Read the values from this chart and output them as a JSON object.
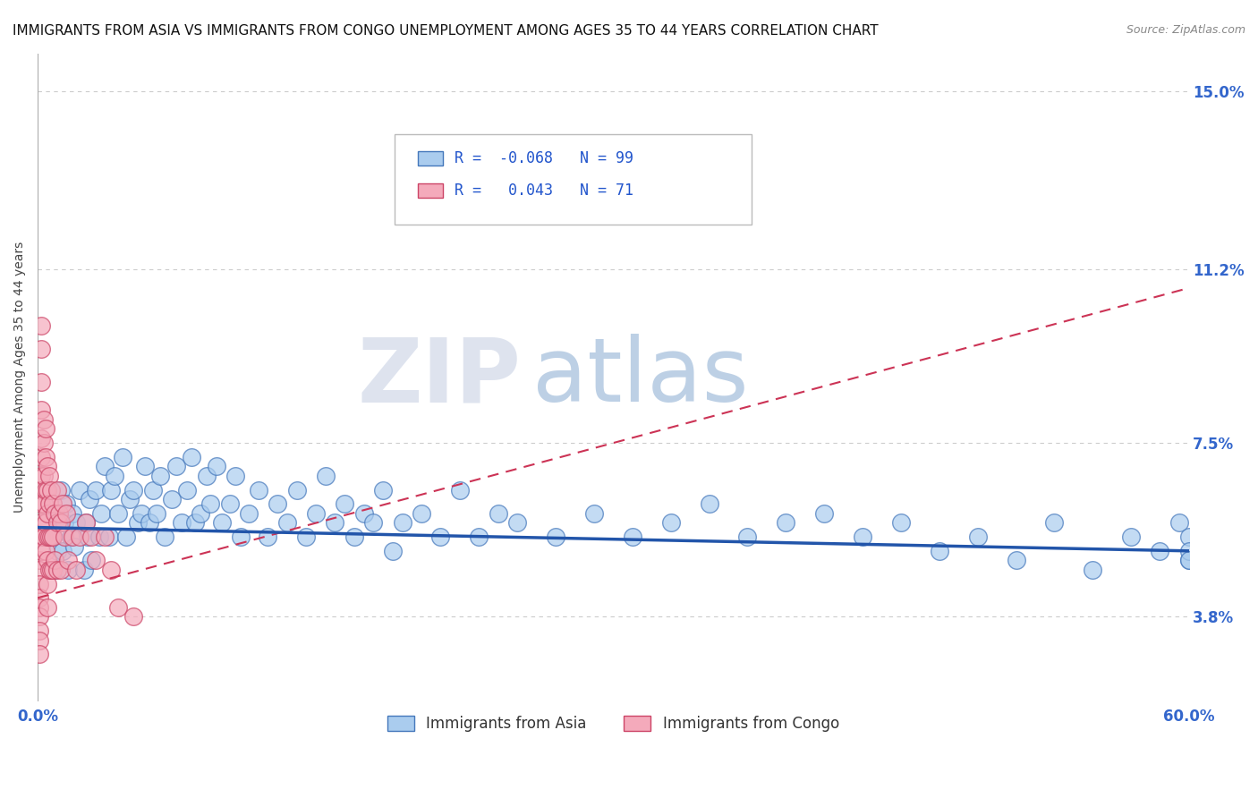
{
  "title": "IMMIGRANTS FROM ASIA VS IMMIGRANTS FROM CONGO UNEMPLOYMENT AMONG AGES 35 TO 44 YEARS CORRELATION CHART",
  "source": "Source: ZipAtlas.com",
  "ylabel": "Unemployment Among Ages 35 to 44 years",
  "xlim": [
    0.0,
    0.6
  ],
  "ylim": [
    0.02,
    0.158
  ],
  "ytick_positions": [
    0.038,
    0.075,
    0.112,
    0.15
  ],
  "ytick_labels": [
    "3.8%",
    "7.5%",
    "11.2%",
    "15.0%"
  ],
  "asia_color": "#aaccee",
  "asia_color_dark": "#4477bb",
  "congo_color": "#f4aabb",
  "congo_color_dark": "#cc4466",
  "asia_R": -0.068,
  "asia_N": 99,
  "congo_R": 0.043,
  "congo_N": 71,
  "legend_label_asia": "Immigrants from Asia",
  "legend_label_congo": "Immigrants from Congo",
  "background_color": "#ffffff",
  "grid_color": "#cccccc",
  "watermark_zip": "ZIP",
  "watermark_atlas": "atlas",
  "title_fontsize": 11,
  "axis_label_fontsize": 10,
  "tick_fontsize": 12,
  "legend_fontsize": 12,
  "source_fontsize": 9,
  "asia_line_x": [
    0.0,
    0.6
  ],
  "asia_line_y": [
    0.057,
    0.052
  ],
  "congo_line_x": [
    0.0,
    0.6
  ],
  "congo_line_y": [
    0.042,
    0.108
  ],
  "asia_scatter_x": [
    0.008,
    0.009,
    0.01,
    0.01,
    0.011,
    0.012,
    0.013,
    0.014,
    0.015,
    0.016,
    0.017,
    0.018,
    0.019,
    0.02,
    0.022,
    0.024,
    0.025,
    0.026,
    0.027,
    0.028,
    0.03,
    0.032,
    0.033,
    0.035,
    0.037,
    0.038,
    0.04,
    0.042,
    0.044,
    0.046,
    0.048,
    0.05,
    0.052,
    0.054,
    0.056,
    0.058,
    0.06,
    0.062,
    0.064,
    0.066,
    0.07,
    0.072,
    0.075,
    0.078,
    0.08,
    0.082,
    0.085,
    0.088,
    0.09,
    0.093,
    0.096,
    0.1,
    0.103,
    0.106,
    0.11,
    0.115,
    0.12,
    0.125,
    0.13,
    0.135,
    0.14,
    0.145,
    0.15,
    0.155,
    0.16,
    0.165,
    0.17,
    0.175,
    0.18,
    0.185,
    0.19,
    0.2,
    0.21,
    0.22,
    0.23,
    0.24,
    0.25,
    0.27,
    0.29,
    0.31,
    0.33,
    0.35,
    0.37,
    0.39,
    0.41,
    0.43,
    0.45,
    0.47,
    0.49,
    0.51,
    0.53,
    0.55,
    0.57,
    0.585,
    0.595,
    0.6,
    0.6,
    0.6,
    0.6
  ],
  "asia_scatter_y": [
    0.055,
    0.048,
    0.06,
    0.052,
    0.058,
    0.065,
    0.052,
    0.058,
    0.062,
    0.048,
    0.055,
    0.06,
    0.053,
    0.058,
    0.065,
    0.048,
    0.058,
    0.055,
    0.063,
    0.05,
    0.065,
    0.055,
    0.06,
    0.07,
    0.055,
    0.065,
    0.068,
    0.06,
    0.072,
    0.055,
    0.063,
    0.065,
    0.058,
    0.06,
    0.07,
    0.058,
    0.065,
    0.06,
    0.068,
    0.055,
    0.063,
    0.07,
    0.058,
    0.065,
    0.072,
    0.058,
    0.06,
    0.068,
    0.062,
    0.07,
    0.058,
    0.062,
    0.068,
    0.055,
    0.06,
    0.065,
    0.055,
    0.062,
    0.058,
    0.065,
    0.055,
    0.06,
    0.068,
    0.058,
    0.062,
    0.055,
    0.06,
    0.058,
    0.065,
    0.052,
    0.058,
    0.06,
    0.055,
    0.065,
    0.055,
    0.06,
    0.058,
    0.055,
    0.06,
    0.055,
    0.058,
    0.062,
    0.055,
    0.058,
    0.06,
    0.055,
    0.058,
    0.052,
    0.055,
    0.05,
    0.058,
    0.048,
    0.055,
    0.052,
    0.058,
    0.05,
    0.055,
    0.052,
    0.05
  ],
  "congo_scatter_x": [
    0.001,
    0.001,
    0.001,
    0.001,
    0.001,
    0.001,
    0.001,
    0.001,
    0.001,
    0.001,
    0.002,
    0.002,
    0.002,
    0.002,
    0.002,
    0.002,
    0.002,
    0.002,
    0.002,
    0.002,
    0.002,
    0.002,
    0.003,
    0.003,
    0.003,
    0.003,
    0.003,
    0.004,
    0.004,
    0.004,
    0.004,
    0.004,
    0.005,
    0.005,
    0.005,
    0.005,
    0.005,
    0.005,
    0.005,
    0.006,
    0.006,
    0.006,
    0.006,
    0.007,
    0.007,
    0.007,
    0.008,
    0.008,
    0.008,
    0.009,
    0.009,
    0.01,
    0.01,
    0.01,
    0.011,
    0.012,
    0.012,
    0.013,
    0.014,
    0.015,
    0.016,
    0.018,
    0.02,
    0.022,
    0.025,
    0.028,
    0.03,
    0.035,
    0.038,
    0.042,
    0.05
  ],
  "congo_scatter_y": [
    0.055,
    0.05,
    0.048,
    0.045,
    0.042,
    0.04,
    0.038,
    0.035,
    0.033,
    0.03,
    0.1,
    0.095,
    0.088,
    0.082,
    0.076,
    0.072,
    0.068,
    0.065,
    0.062,
    0.058,
    0.055,
    0.052,
    0.08,
    0.075,
    0.068,
    0.062,
    0.055,
    0.078,
    0.072,
    0.065,
    0.058,
    0.052,
    0.07,
    0.065,
    0.06,
    0.055,
    0.05,
    0.045,
    0.04,
    0.068,
    0.062,
    0.055,
    0.048,
    0.065,
    0.055,
    0.048,
    0.062,
    0.055,
    0.048,
    0.06,
    0.05,
    0.065,
    0.058,
    0.048,
    0.06,
    0.058,
    0.048,
    0.062,
    0.055,
    0.06,
    0.05,
    0.055,
    0.048,
    0.055,
    0.058,
    0.055,
    0.05,
    0.055,
    0.048,
    0.04,
    0.038
  ]
}
